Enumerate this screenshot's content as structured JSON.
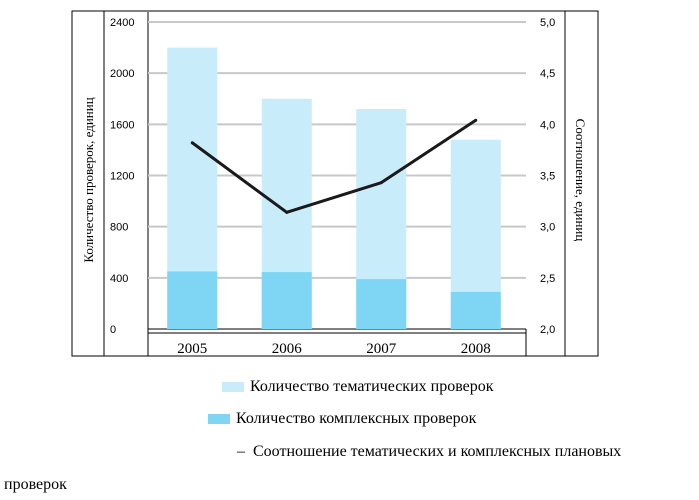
{
  "chart_data": {
    "type": "bar",
    "categories": [
      "2005",
      "2006",
      "2007",
      "2008"
    ],
    "series": [
      {
        "name": "Количество тематических проверок",
        "values": [
          2200,
          1800,
          1720,
          1480
        ],
        "axis": "left",
        "color": "#c8ecfa"
      },
      {
        "name": "Количество комплексных проверок",
        "values": [
          450,
          445,
          390,
          290
        ],
        "axis": "left",
        "color": "#7fd6f4"
      },
      {
        "name": "Соотношение тематических и комплексных плановых проверок",
        "values": [
          3.82,
          3.14,
          3.43,
          4.04
        ],
        "axis": "right",
        "type": "line",
        "color": "#1a1a1a"
      }
    ],
    "ylabel": "Количество проверок, единиц",
    "ylabel_right": "Соотношение, единиц",
    "ylim": [
      0,
      2400
    ],
    "yticks": [
      "0",
      "400",
      "800",
      "1200",
      "1600",
      "2000",
      "2400"
    ],
    "ylim_right": [
      2.0,
      5.0
    ],
    "yticks_right": [
      "2,0",
      "2,5",
      "3,0",
      "3,5",
      "4,0",
      "4,5",
      "5,0"
    ],
    "grid": true,
    "legend_position": "bottom"
  },
  "legend": {
    "items": [
      "Количество тематических проверок",
      "Количество комплексных проверок"
    ],
    "line_dash": "–",
    "line_label": "Соотношение тематических и комплексных плановых",
    "line_label_cont": "проверок"
  }
}
